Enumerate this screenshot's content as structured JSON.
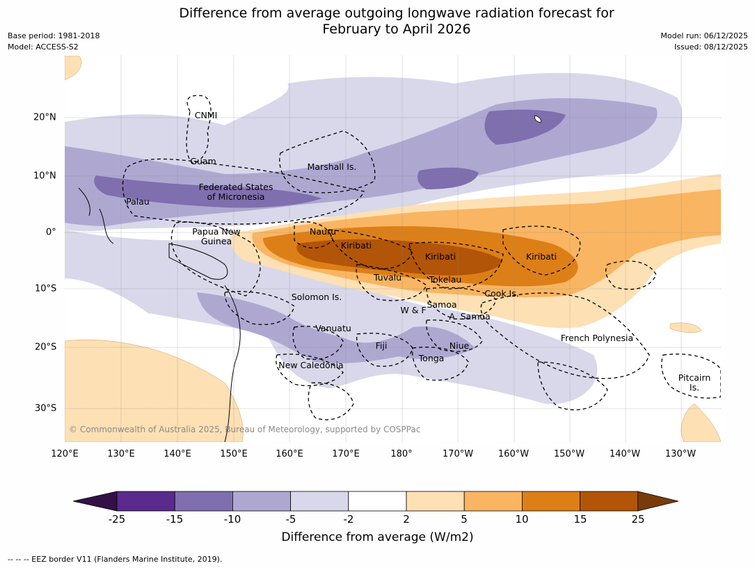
{
  "title": {
    "line1": "Difference from average outgoing longwave radiation forecast for",
    "line2": "February to April 2026"
  },
  "meta": {
    "base_period": "Base period: 1981-2018",
    "model": "Model: ACCESS-S2",
    "model_run": "Model run: 06/12/2025",
    "issued": "Issued: 08/12/2025"
  },
  "axes": {
    "lon_ticks": [
      "120°E",
      "130°E",
      "140°E",
      "150°E",
      "160°E",
      "170°E",
      "180°",
      "170°W",
      "160°W",
      "150°W",
      "140°W",
      "130°W"
    ],
    "lat_ticks": [
      "20°N",
      "10°N",
      "0°",
      "10°S",
      "20°S",
      "30°S"
    ]
  },
  "regions": {
    "cnmi": "CNMI",
    "guam": "Guam",
    "marshall": "Marshall Is.",
    "fsm1": "Federated States",
    "fsm2": "of Micronesia",
    "palau": "Palau",
    "png1": "Papua New",
    "png2": "Guinea",
    "nauru": "Nauru",
    "kiribati_w": "Kiribati",
    "kiribati_c": "Kiribati",
    "kiribati_e": "Kiribati",
    "tuvalu": "Tuvalu",
    "tokelau": "Tokelau",
    "cook": "Cook Is.",
    "solomon": "Solomon Is.",
    "wf": "W & F",
    "samoa": "Samoa",
    "asamoa": "A. Samoa",
    "vanuatu": "Vanuatu",
    "fiji": "Fiji",
    "niue": "Niue",
    "tonga": "Tonga",
    "french_polynesia": "French Polynesia",
    "newcal": "New Caledonia",
    "pitcairn1": "Pitcairn",
    "pitcairn2": "Is."
  },
  "copyright": "© Commonwealth of Australia 2025, Bureau of Meteorology, supported by COSPPac",
  "colorbar": {
    "ticks": [
      "-25",
      "-15",
      "-10",
      "-5",
      "-2",
      "2",
      "5",
      "10",
      "15",
      "25"
    ],
    "colors": [
      "#331047",
      "#5a2a8c",
      "#7f6fae",
      "#aea8d1",
      "#d8d8ea",
      "#ffffff",
      "#fde0b4",
      "#f9b562",
      "#dd7f17",
      "#b25508",
      "#7a3b0a"
    ],
    "label": "Difference from average (W/m2)"
  },
  "footnote": "--  --  -- EEZ border V11 (Flanders Marine Institute, 2019)."
}
